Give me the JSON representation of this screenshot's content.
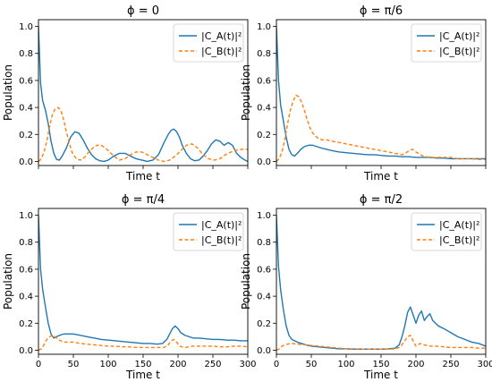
{
  "colors": {
    "series_a": "#1f77b4",
    "series_b": "#ff7f0e",
    "axis": "#000000",
    "legend_border": "#cccccc"
  },
  "legend": {
    "a": "|C_A(t)|²",
    "b": "|C_B(t)|²",
    "placement": "upper right"
  },
  "labels": {
    "x": "Time t",
    "y": "Population"
  },
  "chart_data": [
    {
      "type": "line",
      "title": "ϕ = 0",
      "xlim": [
        0,
        300
      ],
      "ylim": [
        -0.03,
        1.05
      ],
      "xticks": [
        0,
        50,
        100,
        150,
        200,
        250,
        300
      ],
      "yticks": [
        0.0,
        0.2,
        0.4,
        0.6,
        0.8,
        1.0
      ],
      "xtick_labels_visible": false,
      "ylabel": "Population",
      "xlabel": "Time t",
      "series": [
        {
          "name": "|C_A(t)|²",
          "style": "solid",
          "x": [
            0,
            3,
            6,
            10,
            14,
            18,
            22,
            26,
            30,
            34,
            40,
            46,
            52,
            58,
            64,
            70,
            76,
            82,
            88,
            94,
            100,
            108,
            116,
            124,
            132,
            140,
            148,
            156,
            164,
            172,
            180,
            186,
            190,
            194,
            198,
            202,
            206,
            212,
            218,
            224,
            230,
            236,
            242,
            248,
            254,
            260,
            266,
            272,
            278,
            284,
            290,
            296,
            300
          ],
          "y": [
            1.0,
            0.58,
            0.45,
            0.38,
            0.28,
            0.15,
            0.06,
            0.015,
            0.01,
            0.04,
            0.1,
            0.18,
            0.22,
            0.21,
            0.16,
            0.1,
            0.05,
            0.02,
            0.005,
            0.0,
            0.01,
            0.04,
            0.06,
            0.06,
            0.04,
            0.02,
            0.01,
            0.0,
            0.01,
            0.05,
            0.14,
            0.2,
            0.23,
            0.24,
            0.22,
            0.18,
            0.12,
            0.06,
            0.02,
            0.005,
            0.01,
            0.04,
            0.08,
            0.13,
            0.16,
            0.15,
            0.12,
            0.14,
            0.12,
            0.06,
            0.03,
            0.01,
            0.0
          ]
        },
        {
          "name": "|C_B(t)|²",
          "style": "dashed",
          "x": [
            0,
            4,
            8,
            12,
            16,
            20,
            24,
            28,
            32,
            36,
            40,
            44,
            48,
            54,
            60,
            66,
            72,
            78,
            84,
            90,
            96,
            102,
            108,
            116,
            124,
            132,
            140,
            148,
            156,
            164,
            172,
            180,
            188,
            196,
            204,
            212,
            220,
            228,
            236,
            244,
            252,
            260,
            268,
            276,
            282,
            288,
            294,
            300
          ],
          "y": [
            0.0,
            0.02,
            0.07,
            0.15,
            0.26,
            0.35,
            0.39,
            0.4,
            0.38,
            0.31,
            0.22,
            0.14,
            0.07,
            0.02,
            0.01,
            0.03,
            0.07,
            0.1,
            0.12,
            0.12,
            0.1,
            0.07,
            0.04,
            0.01,
            0.02,
            0.05,
            0.07,
            0.07,
            0.05,
            0.03,
            0.01,
            0.0,
            0.01,
            0.04,
            0.08,
            0.12,
            0.13,
            0.1,
            0.05,
            0.02,
            0.01,
            0.02,
            0.05,
            0.07,
            0.08,
            0.09,
            0.09,
            0.09
          ]
        }
      ]
    },
    {
      "type": "line",
      "title": "ϕ = π/6",
      "xlim": [
        0,
        300
      ],
      "ylim": [
        -0.03,
        1.05
      ],
      "xticks": [
        0,
        50,
        100,
        150,
        200,
        250,
        300
      ],
      "yticks": [
        0.0,
        0.2,
        0.4,
        0.6,
        0.8,
        1.0
      ],
      "xtick_labels_visible": false,
      "ylabel": "Population",
      "xlabel": "Time t",
      "series": [
        {
          "name": "|C_A(t)|²",
          "style": "solid",
          "x": [
            0,
            3,
            6,
            10,
            14,
            18,
            22,
            26,
            30,
            35,
            40,
            46,
            52,
            58,
            64,
            72,
            80,
            90,
            100,
            110,
            120,
            130,
            140,
            150,
            160,
            170,
            180,
            190,
            200,
            210,
            220,
            230,
            240,
            250,
            260,
            270,
            280,
            290,
            300
          ],
          "y": [
            1.0,
            0.6,
            0.42,
            0.3,
            0.18,
            0.09,
            0.05,
            0.04,
            0.06,
            0.09,
            0.11,
            0.12,
            0.12,
            0.11,
            0.1,
            0.09,
            0.08,
            0.07,
            0.065,
            0.06,
            0.055,
            0.05,
            0.05,
            0.045,
            0.04,
            0.04,
            0.035,
            0.035,
            0.03,
            0.03,
            0.03,
            0.025,
            0.025,
            0.02,
            0.02,
            0.02,
            0.02,
            0.02,
            0.02
          ]
        },
        {
          "name": "|C_B(t)|²",
          "style": "dashed",
          "x": [
            0,
            4,
            8,
            12,
            16,
            20,
            24,
            28,
            32,
            36,
            40,
            44,
            48,
            52,
            56,
            60,
            66,
            72,
            80,
            90,
            100,
            110,
            120,
            130,
            140,
            150,
            160,
            170,
            180,
            185,
            190,
            195,
            200,
            210,
            220,
            230,
            240,
            250,
            260,
            270,
            280,
            290,
            300
          ],
          "y": [
            0.0,
            0.02,
            0.07,
            0.16,
            0.28,
            0.38,
            0.45,
            0.49,
            0.48,
            0.44,
            0.38,
            0.31,
            0.25,
            0.21,
            0.19,
            0.17,
            0.16,
            0.16,
            0.15,
            0.14,
            0.13,
            0.12,
            0.11,
            0.1,
            0.09,
            0.08,
            0.07,
            0.06,
            0.05,
            0.06,
            0.08,
            0.09,
            0.07,
            0.04,
            0.03,
            0.03,
            0.03,
            0.03,
            0.02,
            0.02,
            0.02,
            0.015,
            0.015
          ]
        }
      ]
    },
    {
      "type": "line",
      "title": "ϕ = π/4",
      "xlim": [
        0,
        300
      ],
      "ylim": [
        -0.03,
        1.05
      ],
      "xticks": [
        0,
        50,
        100,
        150,
        200,
        250,
        300
      ],
      "yticks": [
        0.0,
        0.2,
        0.4,
        0.6,
        0.8,
        1.0
      ],
      "xtick_labels_visible": true,
      "ylabel": "Population",
      "xlabel": "Time t",
      "series": [
        {
          "name": "|C_A(t)|²",
          "style": "solid",
          "x": [
            0,
            3,
            6,
            10,
            14,
            18,
            22,
            26,
            30,
            36,
            42,
            50,
            60,
            70,
            80,
            90,
            100,
            110,
            120,
            130,
            140,
            150,
            160,
            170,
            178,
            184,
            188,
            192,
            196,
            200,
            204,
            210,
            216,
            222,
            230,
            240,
            250,
            260,
            270,
            280,
            290,
            300
          ],
          "y": [
            1.0,
            0.6,
            0.45,
            0.32,
            0.2,
            0.12,
            0.09,
            0.1,
            0.11,
            0.12,
            0.12,
            0.12,
            0.11,
            0.1,
            0.09,
            0.08,
            0.075,
            0.07,
            0.065,
            0.06,
            0.055,
            0.05,
            0.05,
            0.045,
            0.05,
            0.08,
            0.12,
            0.16,
            0.18,
            0.16,
            0.13,
            0.11,
            0.1,
            0.09,
            0.09,
            0.085,
            0.08,
            0.08,
            0.075,
            0.075,
            0.07,
            0.07
          ]
        },
        {
          "name": "|C_B(t)|²",
          "style": "dashed",
          "x": [
            0,
            4,
            8,
            12,
            16,
            20,
            24,
            28,
            32,
            36,
            42,
            50,
            60,
            70,
            80,
            90,
            100,
            110,
            120,
            130,
            140,
            150,
            160,
            170,
            180,
            186,
            190,
            194,
            198,
            202,
            210,
            220,
            230,
            240,
            250,
            260,
            270,
            280,
            290,
            300
          ],
          "y": [
            0.0,
            0.01,
            0.04,
            0.08,
            0.1,
            0.11,
            0.1,
            0.08,
            0.07,
            0.06,
            0.06,
            0.06,
            0.05,
            0.045,
            0.04,
            0.035,
            0.03,
            0.03,
            0.025,
            0.025,
            0.02,
            0.02,
            0.02,
            0.02,
            0.02,
            0.04,
            0.07,
            0.08,
            0.06,
            0.03,
            0.02,
            0.03,
            0.03,
            0.03,
            0.03,
            0.025,
            0.025,
            0.03,
            0.03,
            0.025
          ]
        }
      ]
    },
    {
      "type": "line",
      "title": "ϕ = π/2",
      "xlim": [
        0,
        300
      ],
      "ylim": [
        -0.03,
        1.05
      ],
      "xticks": [
        0,
        50,
        100,
        150,
        200,
        250,
        300
      ],
      "yticks": [
        0.0,
        0.2,
        0.4,
        0.6,
        0.8,
        1.0
      ],
      "xtick_labels_visible": true,
      "ylabel": "Population",
      "xlabel": "Time t",
      "series": [
        {
          "name": "|C_A(t)|²",
          "style": "solid",
          "x": [
            0,
            3,
            6,
            10,
            14,
            18,
            22,
            26,
            30,
            36,
            42,
            50,
            60,
            70,
            80,
            90,
            100,
            110,
            120,
            130,
            140,
            150,
            160,
            170,
            176,
            180,
            184,
            188,
            192,
            196,
            200,
            204,
            208,
            212,
            216,
            220,
            224,
            228,
            232,
            240,
            250,
            260,
            270,
            280,
            290,
            300
          ],
          "y": [
            1.0,
            0.62,
            0.45,
            0.3,
            0.18,
            0.11,
            0.08,
            0.07,
            0.06,
            0.05,
            0.04,
            0.03,
            0.025,
            0.02,
            0.015,
            0.01,
            0.01,
            0.008,
            0.008,
            0.008,
            0.008,
            0.008,
            0.01,
            0.015,
            0.04,
            0.1,
            0.18,
            0.28,
            0.32,
            0.26,
            0.2,
            0.26,
            0.29,
            0.22,
            0.25,
            0.27,
            0.22,
            0.2,
            0.18,
            0.16,
            0.13,
            0.1,
            0.08,
            0.06,
            0.05,
            0.03
          ]
        },
        {
          "name": "|C_B(t)|²",
          "style": "dashed",
          "x": [
            0,
            4,
            8,
            12,
            16,
            20,
            24,
            28,
            32,
            36,
            42,
            50,
            60,
            70,
            80,
            90,
            100,
            110,
            120,
            130,
            140,
            150,
            160,
            170,
            176,
            180,
            184,
            188,
            192,
            196,
            200,
            206,
            212,
            220,
            230,
            240,
            250,
            260,
            270,
            280,
            290,
            300
          ],
          "y": [
            0.0,
            0.01,
            0.03,
            0.04,
            0.045,
            0.05,
            0.05,
            0.045,
            0.045,
            0.04,
            0.04,
            0.035,
            0.03,
            0.025,
            0.02,
            0.015,
            0.01,
            0.01,
            0.008,
            0.008,
            0.008,
            0.008,
            0.008,
            0.01,
            0.02,
            0.04,
            0.07,
            0.1,
            0.11,
            0.07,
            0.03,
            0.05,
            0.04,
            0.03,
            0.03,
            0.025,
            0.02,
            0.02,
            0.02,
            0.02,
            0.015,
            0.015
          ]
        }
      ]
    }
  ]
}
